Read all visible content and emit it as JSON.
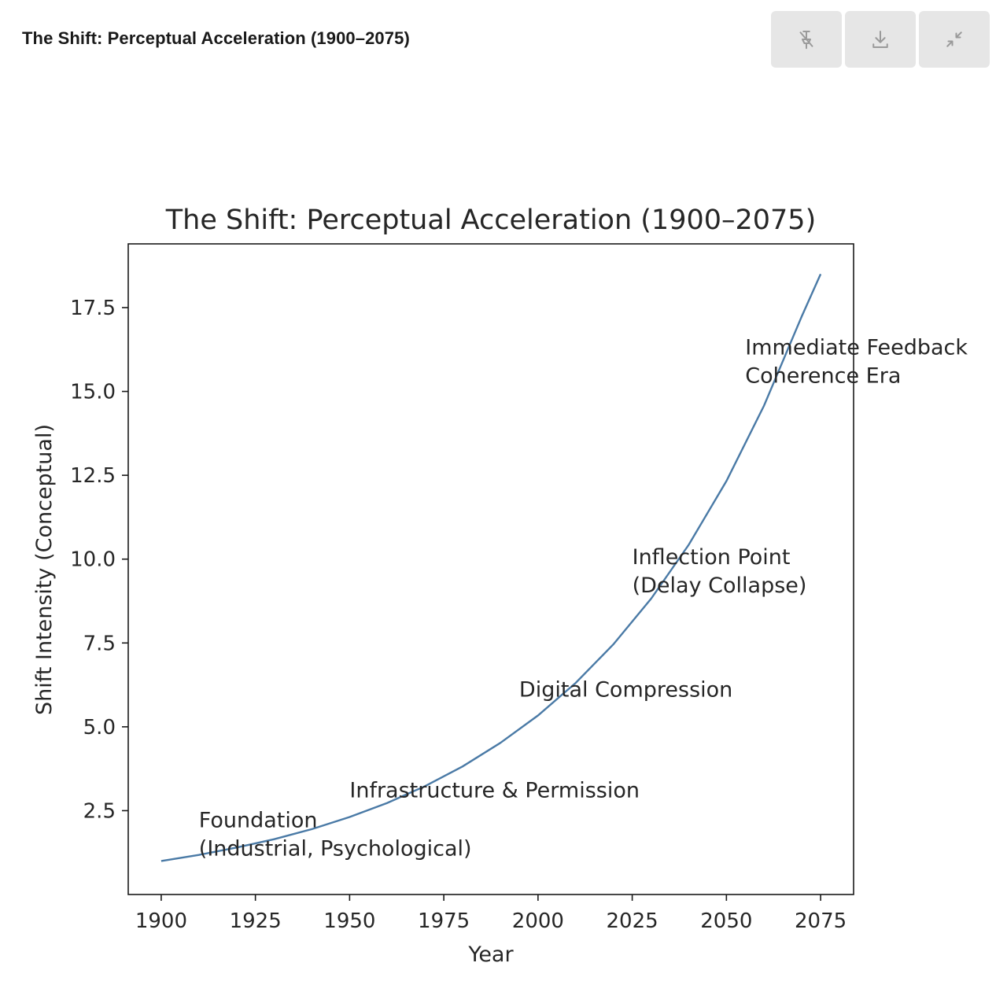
{
  "header": {
    "title": "The Shift: Perceptual Acceleration (1900–2075)"
  },
  "toolbar": {
    "buttons": [
      {
        "icon": "unpin-icon",
        "name": "unpin-button"
      },
      {
        "icon": "download-icon",
        "name": "download-button"
      },
      {
        "icon": "collapse-icon",
        "name": "collapse-button"
      }
    ]
  },
  "chart_data": {
    "type": "line",
    "title": "The Shift: Perceptual Acceleration (1900–2075)",
    "xlabel": "Year",
    "ylabel": "Shift Intensity (Conceptual)",
    "xlim": [
      1891.25,
      2083.75
    ],
    "ylim": [
      0.0,
      19.4
    ],
    "x_ticks": [
      1900,
      1925,
      1950,
      1975,
      2000,
      2025,
      2050,
      2075
    ],
    "x_tick_labels": [
      "1900",
      "1925",
      "1950",
      "1975",
      "2000",
      "2025",
      "2050",
      "2075"
    ],
    "y_ticks": [
      2.5,
      5.0,
      7.5,
      10.0,
      12.5,
      15.0,
      17.5
    ],
    "y_tick_labels": [
      "2.5",
      "5.0",
      "7.5",
      "10.0",
      "12.5",
      "15.0",
      "17.5"
    ],
    "grid": false,
    "line_color": "#4a7aa6",
    "series": [
      {
        "x": [
          1900,
          1910,
          1920,
          1930,
          1940,
          1950,
          1960,
          1970,
          1980,
          1990,
          2000,
          2010,
          2020,
          2030,
          2040,
          2050,
          2060,
          2070,
          2075
        ],
        "y": [
          1.0,
          1.18,
          1.4,
          1.65,
          1.95,
          2.31,
          2.73,
          3.23,
          3.82,
          4.52,
          5.34,
          6.31,
          7.46,
          8.82,
          10.43,
          12.33,
          14.58,
          17.24,
          18.5
        ]
      }
    ],
    "annotations": [
      {
        "x": 1910,
        "y": 2.0,
        "lines": [
          "Foundation",
          "(Industrial, Psychological)"
        ]
      },
      {
        "x": 1950,
        "y": 2.9,
        "lines": [
          "Infrastructure & Permission"
        ]
      },
      {
        "x": 1995,
        "y": 5.9,
        "lines": [
          "Digital Compression"
        ]
      },
      {
        "x": 2025,
        "y": 9.85,
        "lines": [
          "Inflection Point",
          "(Delay Collapse)"
        ]
      },
      {
        "x": 2055,
        "y": 16.1,
        "lines": [
          "Immediate Feedback",
          "Coherence Era"
        ]
      }
    ]
  }
}
